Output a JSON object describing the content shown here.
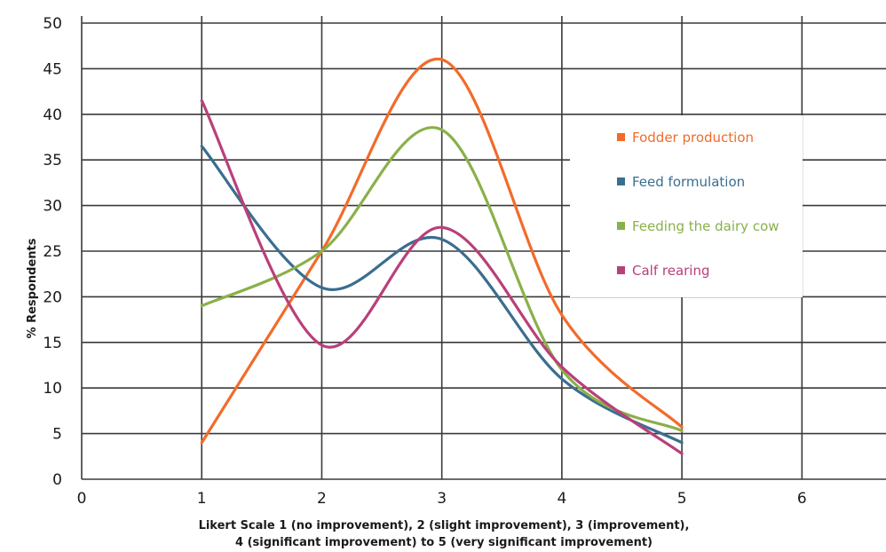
{
  "chart_data": {
    "type": "line",
    "ylabel": "% Respondents",
    "xlabel_lines": [
      "Likert Scale 1 (no improvement), 2 (slight improvement), 3 (improvement),",
      "4 (significant improvement) to 5 (very significant improvement)"
    ],
    "xlim": [
      0,
      6.7
    ],
    "ylim": [
      0,
      50
    ],
    "x_ticks": [
      "0",
      "1",
      "2",
      "3",
      "4",
      "5",
      "6"
    ],
    "y_ticks": [
      "0",
      "5",
      "10",
      "15",
      "20",
      "25",
      "30",
      "35",
      "40",
      "45",
      "50"
    ],
    "grid": true,
    "smooth": true,
    "legend_position": "right",
    "x": [
      1,
      2,
      3,
      4,
      5
    ],
    "series": [
      {
        "name": "Fodder production",
        "color": "#f26b2a",
        "values": [
          4,
          25,
          46,
          18,
          5.7
        ]
      },
      {
        "name": "Feed formulation",
        "color": "#3a6e8f",
        "values": [
          36.5,
          21,
          26.3,
          11,
          4
        ]
      },
      {
        "name": "Feeding the dairy cow",
        "color": "#8ab04a",
        "values": [
          19,
          25,
          38.3,
          12,
          5.3
        ]
      },
      {
        "name": "Calf rearing",
        "color": "#b8407a",
        "values": [
          41.5,
          14.7,
          27.6,
          12.3,
          2.8
        ]
      }
    ]
  }
}
